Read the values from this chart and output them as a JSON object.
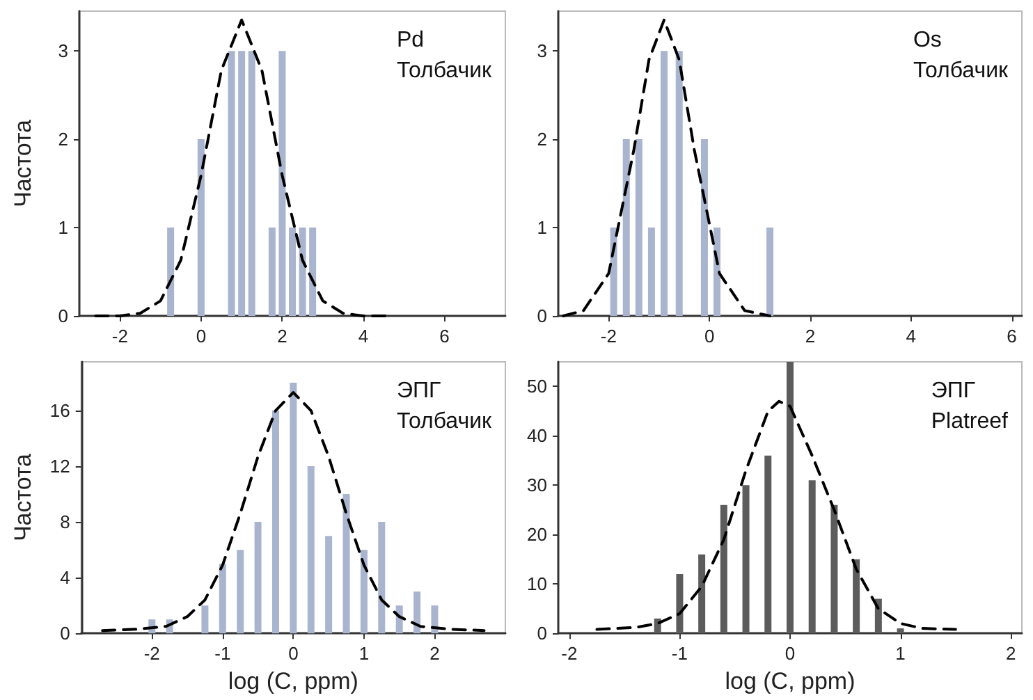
{
  "chart_data": [
    {
      "type": "bar",
      "ylabel": "Частота",
      "annotations": [
        "Pd",
        "Толбачик"
      ],
      "xlim": [
        -3,
        7.5
      ],
      "xticks": [
        -2,
        0,
        2,
        4,
        6
      ],
      "ylim": [
        0,
        3.45
      ],
      "yticks": [
        0,
        1,
        2,
        3
      ],
      "series": [
        {
          "color": "#a9b4cf",
          "x": [
            -0.75,
            0,
            0.75,
            1,
            1.25,
            1.75,
            2,
            2.25,
            2.5,
            2.75
          ],
          "values": [
            1,
            2,
            3,
            3,
            3,
            1,
            3,
            1,
            1,
            1
          ]
        },
        {
          "type": "line",
          "color": "#000000",
          "line_style": "dashed",
          "marker": "none",
          "x": [
            -2.6,
            -2,
            -1.5,
            -1,
            -0.5,
            0,
            0.5,
            1,
            1.5,
            2,
            2.5,
            3,
            3.5,
            4,
            4.6
          ],
          "values": [
            0,
            0,
            0.03,
            0.17,
            0.63,
            1.59,
            2.78,
            3.35,
            2.78,
            1.59,
            0.63,
            0.17,
            0.03,
            0,
            0
          ]
        }
      ]
    },
    {
      "type": "bar",
      "annotations": [
        "Os",
        "Толбачик"
      ],
      "xlim": [
        -3,
        6.2
      ],
      "xticks": [
        -2,
        0,
        2,
        4,
        6
      ],
      "ylim": [
        0,
        3.45
      ],
      "yticks": [
        0,
        1,
        2,
        3
      ],
      "series": [
        {
          "color": "#a9b4cf",
          "x": [
            -1.9,
            -1.65,
            -1.4,
            -1.15,
            -0.9,
            -0.6,
            -0.1,
            0.15,
            1.2
          ],
          "values": [
            1,
            2,
            2,
            1,
            3,
            3,
            2,
            1,
            1
          ]
        },
        {
          "type": "line",
          "color": "#000000",
          "line_style": "dashed",
          "marker": "none",
          "x": [
            -2.9,
            -2.5,
            -2,
            -1.5,
            -1.2,
            -0.9,
            -0.6,
            -0.3,
            0.2,
            0.7,
            1.2
          ],
          "values": [
            0,
            0.06,
            0.48,
            1.88,
            2.9,
            3.35,
            2.9,
            1.88,
            0.48,
            0.06,
            0
          ]
        }
      ]
    },
    {
      "type": "bar",
      "ylabel": "Частота",
      "xlabel": "log (C, ppm)",
      "annotations": [
        "ЭПГ",
        "Толбачик"
      ],
      "xlim": [
        -3,
        3
      ],
      "xticks": [
        -2,
        -1,
        0,
        1,
        2
      ],
      "ylim": [
        0,
        19.5
      ],
      "yticks": [
        0,
        4,
        8,
        12,
        16
      ],
      "series": [
        {
          "color": "#a9b4cf",
          "x": [
            -2,
            -1.75,
            -1.25,
            -1,
            -0.75,
            -0.5,
            -0.25,
            0,
            0.25,
            0.5,
            0.75,
            1,
            1.25,
            1.5,
            1.75,
            2
          ],
          "values": [
            1,
            1,
            2,
            5,
            6,
            8,
            16,
            18,
            12,
            7,
            10,
            6,
            8,
            2,
            3,
            2
          ]
        },
        {
          "type": "line",
          "color": "#000000",
          "line_style": "dashed",
          "marker": "none",
          "x": [
            -2.7,
            -2.2,
            -1.8,
            -1.5,
            -1.25,
            -1,
            -0.75,
            -0.5,
            -0.25,
            0,
            0.25,
            0.5,
            0.75,
            1,
            1.25,
            1.5,
            1.8,
            2.2,
            2.7
          ],
          "values": [
            0.2,
            0.3,
            0.5,
            1.2,
            2.4,
            4.9,
            8.6,
            12.7,
            16,
            17.3,
            16,
            12.7,
            8.6,
            4.9,
            2.4,
            1.2,
            0.5,
            0.3,
            0.2
          ]
        }
      ]
    },
    {
      "type": "bar",
      "xlabel": "log (C, ppm)",
      "annotations": [
        "ЭПГ",
        "Platreef"
      ],
      "xlim": [
        -2.1,
        2.1
      ],
      "xticks": [
        -2,
        -1,
        0,
        1,
        2
      ],
      "ylim": [
        0,
        55
      ],
      "yticks": [
        0,
        10,
        20,
        30,
        40,
        50
      ],
      "series": [
        {
          "color": "#5c5c5c",
          "x": [
            -1.2,
            -1,
            -0.8,
            -0.6,
            -0.4,
            -0.2,
            0,
            0.2,
            0.4,
            0.6,
            0.8,
            1
          ],
          "values": [
            3,
            12,
            16,
            26,
            30,
            36,
            55,
            31,
            26,
            15,
            7,
            1
          ]
        },
        {
          "type": "line",
          "color": "#000000",
          "line_style": "dashed",
          "marker": "none",
          "x": [
            -1.75,
            -1.4,
            -1.2,
            -1,
            -0.8,
            -0.6,
            -0.4,
            -0.2,
            -0.1,
            0,
            0.2,
            0.4,
            0.6,
            0.8,
            1,
            1.2,
            1.5
          ],
          "values": [
            0.8,
            1.2,
            2,
            4,
            9.5,
            19,
            33,
            45,
            47,
            46,
            36,
            25,
            13,
            5,
            2,
            1,
            0.8
          ]
        }
      ]
    }
  ]
}
